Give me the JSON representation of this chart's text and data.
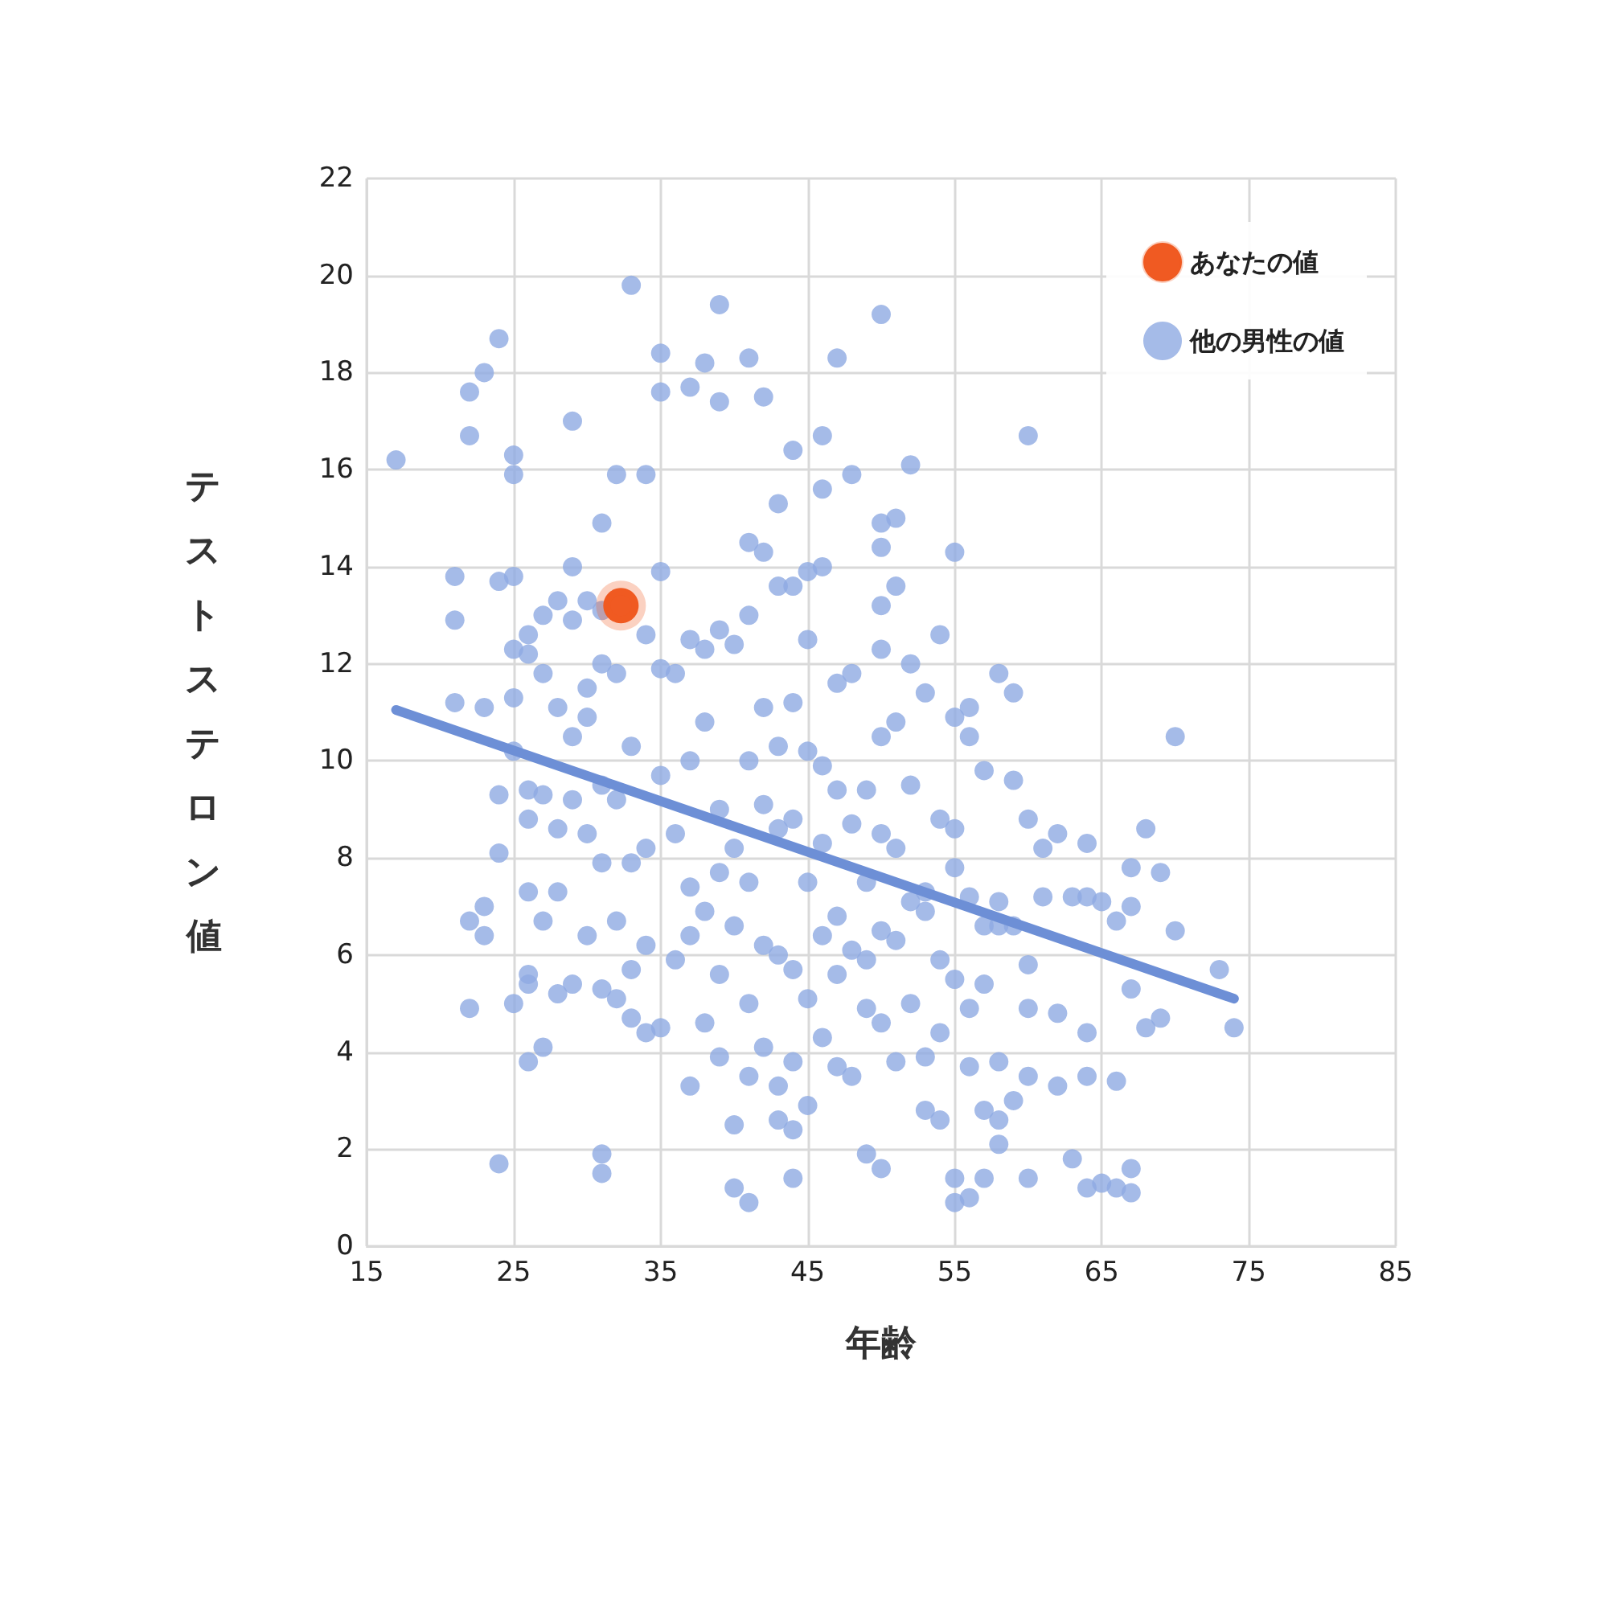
{
  "chart_data": {
    "type": "scatter",
    "xlabel": "年齢",
    "ylabel": "テストステロン値",
    "xlim": [
      15,
      85
    ],
    "xticks": [
      15,
      25,
      35,
      45,
      55,
      65,
      75,
      85
    ],
    "ylim": [
      0,
      22
    ],
    "yticks": [
      0,
      2,
      4,
      6,
      8,
      10,
      12,
      14,
      16,
      18,
      20,
      22
    ],
    "grid": true,
    "legend": "top right",
    "marker": "circle",
    "series": [
      {
        "name": "他の男性の値",
        "color": "#8eaae2",
        "x": [
          17,
          21,
          21,
          21,
          22,
          22,
          22,
          22,
          23,
          23,
          23,
          23,
          24,
          24,
          24,
          24,
          24,
          25,
          25,
          25,
          25,
          25,
          25,
          25,
          26,
          26,
          26,
          26,
          26,
          26,
          26,
          26,
          27,
          27,
          27,
          27,
          27,
          28,
          28,
          28,
          28,
          28,
          29,
          29,
          29,
          29,
          29,
          29,
          30,
          30,
          30,
          30,
          30,
          31,
          31,
          31,
          31,
          31,
          31,
          31,
          31,
          32,
          32,
          32,
          32,
          32,
          33,
          33,
          33,
          33,
          33,
          34,
          34,
          34,
          34,
          34,
          35,
          35,
          35,
          35,
          35,
          35,
          36,
          36,
          36,
          37,
          37,
          37,
          37,
          37,
          37,
          38,
          38,
          38,
          38,
          38,
          39,
          39,
          39,
          39,
          39,
          39,
          39,
          40,
          40,
          40,
          40,
          40,
          41,
          41,
          41,
          41,
          41,
          41,
          41,
          41,
          42,
          42,
          42,
          42,
          42,
          42,
          43,
          43,
          43,
          43,
          43,
          43,
          43,
          44,
          44,
          44,
          44,
          44,
          44,
          44,
          44,
          45,
          45,
          45,
          45,
          45,
          45,
          46,
          46,
          46,
          46,
          46,
          46,
          46,
          47,
          47,
          47,
          47,
          47,
          47,
          48,
          48,
          48,
          48,
          48,
          49,
          49,
          49,
          49,
          49,
          50,
          50,
          50,
          50,
          50,
          50,
          50,
          50,
          50,
          50,
          51,
          51,
          51,
          51,
          51,
          51,
          52,
          52,
          52,
          52,
          52,
          53,
          53,
          53,
          53,
          53,
          54,
          54,
          54,
          54,
          54,
          55,
          55,
          55,
          55,
          55,
          55,
          55,
          56,
          56,
          56,
          56,
          56,
          56,
          57,
          57,
          57,
          57,
          57,
          58,
          58,
          58,
          58,
          58,
          58,
          59,
          59,
          59,
          59,
          60,
          60,
          60,
          60,
          60,
          60,
          61,
          61,
          62,
          62,
          62,
          63,
          63,
          64,
          64,
          64,
          64,
          64,
          65,
          65,
          66,
          66,
          66,
          67,
          67,
          67,
          67,
          67,
          68,
          68,
          69,
          69,
          70,
          70,
          73,
          74
        ],
        "values": [
          16.2,
          13.8,
          12.9,
          11.2,
          17.6,
          16.7,
          6.7,
          4.9,
          18,
          11.1,
          7,
          6.4,
          18.7,
          13.7,
          1.7,
          9.3,
          8.1,
          16.3,
          15.9,
          13.8,
          12.3,
          11.3,
          10.2,
          5,
          12.6,
          12.2,
          9.4,
          8.8,
          7.3,
          5.6,
          5.4,
          3.8,
          13,
          11.8,
          9.3,
          6.7,
          4.1,
          13.3,
          11.1,
          8.6,
          7.3,
          5.2,
          17,
          14,
          12.9,
          10.5,
          9.2,
          5.4,
          13.3,
          11.5,
          10.9,
          8.5,
          6.4,
          14.9,
          13.1,
          12,
          9.5,
          7.9,
          5.3,
          1.9,
          1.5,
          15.9,
          11.8,
          9.2,
          6.7,
          5.1,
          19.8,
          10.3,
          7.9,
          5.7,
          4.7,
          15.9,
          12.6,
          8.2,
          6.2,
          4.4,
          18.4,
          17.6,
          13.9,
          11.9,
          9.7,
          4.5,
          11.8,
          8.5,
          5.9,
          17.7,
          12.5,
          10,
          7.4,
          6.4,
          3.3,
          18.2,
          12.3,
          10.8,
          6.9,
          4.6,
          19.4,
          17.4,
          12.7,
          9,
          7.7,
          5.6,
          3.9,
          12.4,
          8.2,
          6.6,
          2.5,
          1.2,
          18.3,
          14.5,
          13,
          10,
          7.5,
          5,
          3.5,
          0.9,
          17.5,
          14.3,
          11.1,
          9.1,
          6.2,
          4.1,
          15.3,
          13.6,
          10.3,
          8.6,
          6,
          3.3,
          2.6,
          16.4,
          13.6,
          11.2,
          8.8,
          5.7,
          3.8,
          2.4,
          1.4,
          13.9,
          12.5,
          10.2,
          7.5,
          5.1,
          2.9,
          16.7,
          15.6,
          14,
          9.9,
          8.3,
          6.4,
          4.3,
          18.3,
          11.6,
          9.4,
          6.8,
          5.6,
          3.7,
          15.9,
          11.8,
          8.7,
          6.1,
          3.5,
          9.4,
          7.5,
          5.9,
          4.9,
          1.9,
          19.2,
          14.9,
          14.4,
          13.2,
          12.3,
          10.5,
          8.5,
          6.5,
          4.6,
          1.6,
          15,
          13.6,
          10.8,
          8.2,
          6.3,
          3.8,
          16.1,
          12,
          9.5,
          7.1,
          5,
          11.4,
          7.3,
          6.9,
          3.9,
          2.8,
          12.6,
          8.8,
          5.9,
          4.4,
          2.6,
          14.3,
          10.9,
          8.6,
          7.8,
          5.5,
          1.4,
          0.9,
          11.1,
          10.5,
          7.2,
          4.9,
          3.7,
          1,
          9.8,
          6.6,
          5.4,
          2.8,
          1.4,
          11.8,
          7.1,
          6.6,
          3.8,
          2.6,
          2.1,
          11.4,
          9.6,
          6.6,
          3,
          16.7,
          8.8,
          5.8,
          4.9,
          3.5,
          1.4,
          8.2,
          7.2,
          8.5,
          4.8,
          3.3,
          7.2,
          1.8,
          8.3,
          7.2,
          4.4,
          3.5,
          1.2,
          7.1,
          1.3,
          6.7,
          3.4,
          1.2,
          7.8,
          7,
          5.3,
          1.6,
          1.1,
          8.6,
          4.5,
          7.7,
          4.7,
          10.5,
          6.5,
          5.7,
          4.5
        ]
      },
      {
        "type": "line",
        "color": "#6d8fd6",
        "marker": "none",
        "x": [
          17,
          74
        ],
        "values": [
          11.05,
          5.1
        ]
      },
      {
        "name": "あなたの値",
        "color": "#f05a22",
        "x": [
          32.3
        ],
        "values": [
          13.2
        ]
      }
    ]
  }
}
